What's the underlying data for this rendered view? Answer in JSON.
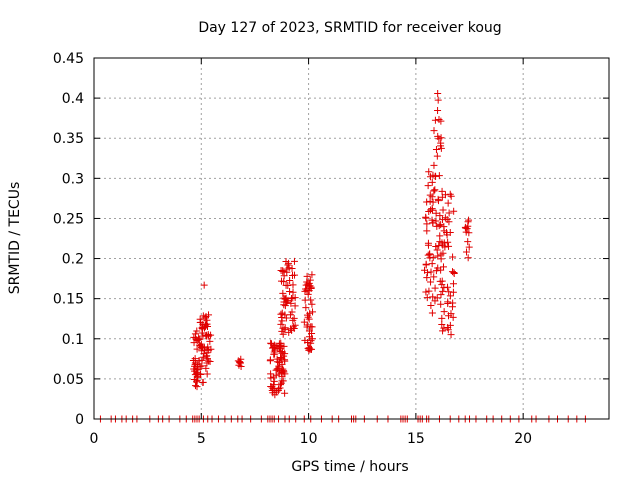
{
  "chart_data": {
    "type": "scatter",
    "title": "Day 127 of 2023, SRMTID for receiver koug",
    "xlabel": "GPS time / hours",
    "ylabel": "SRMTID / TECUs",
    "xlim": [
      0,
      24
    ],
    "ylim": [
      0,
      0.45
    ],
    "xticks": [
      0,
      5,
      10,
      15,
      20
    ],
    "yticks": [
      0,
      0.05,
      0.1,
      0.15,
      0.2,
      0.25,
      0.3,
      0.35,
      0.4,
      0.45
    ],
    "xtick_labels": [
      "0",
      "5",
      "10",
      "15",
      "20"
    ],
    "ytick_labels": [
      "0",
      "0.05",
      "0.1",
      "0.15",
      "0.2",
      "0.25",
      "0.3",
      "0.35",
      "0.4",
      "0.45"
    ],
    "grid": true,
    "marker": "+",
    "colors": {
      "marker": "#e00000",
      "grid": "#a0a0a0",
      "frame": "#000000"
    },
    "clusters": [
      {
        "x_range": [
          4.6,
          4.9
        ],
        "y_range": [
          0.04,
          0.11
        ],
        "count": 34
      },
      {
        "x_range": [
          4.9,
          5.45
        ],
        "y_range": [
          0.045,
          0.13
        ],
        "count": 60
      },
      {
        "x_range": [
          5.1,
          5.15
        ],
        "y_range": [
          0.16,
          0.17
        ],
        "count": 1
      },
      {
        "x_range": [
          6.7,
          6.9
        ],
        "y_range": [
          0.065,
          0.08
        ],
        "count": 8
      },
      {
        "x_range": [
          8.2,
          8.9
        ],
        "y_range": [
          0.03,
          0.095
        ],
        "count": 70
      },
      {
        "x_range": [
          8.7,
          9.4
        ],
        "y_range": [
          0.105,
          0.2
        ],
        "count": 60
      },
      {
        "x_range": [
          9.8,
          10.2
        ],
        "y_range": [
          0.085,
          0.18
        ],
        "count": 45
      },
      {
        "x_range": [
          15.4,
          15.8
        ],
        "y_range": [
          0.13,
          0.31
        ],
        "count": 40
      },
      {
        "x_range": [
          15.8,
          16.2
        ],
        "y_range": [
          0.14,
          0.415
        ],
        "count": 50
      },
      {
        "x_range": [
          16.2,
          16.8
        ],
        "y_range": [
          0.105,
          0.3
        ],
        "count": 55
      },
      {
        "x_range": [
          17.3,
          17.5
        ],
        "y_range": [
          0.2,
          0.25
        ],
        "count": 12
      }
    ],
    "zero_x": [
      0.3,
      0.8,
      1.0,
      1.3,
      1.5,
      1.8,
      2.0,
      2.6,
      3.0,
      3.2,
      3.5,
      4.0,
      4.3,
      4.6,
      4.7,
      4.8,
      4.9,
      5.1,
      5.3,
      5.5,
      5.8,
      6.1,
      6.4,
      6.7,
      6.9,
      7.3,
      7.8,
      8.1,
      8.2,
      8.3,
      8.4,
      8.6,
      8.9,
      9.1,
      9.4,
      9.8,
      10.1,
      10.6,
      11.1,
      11.4,
      12.0,
      12.1,
      12.2,
      12.6,
      13.2,
      13.7,
      14.3,
      14.4,
      14.5,
      14.6,
      15.1,
      15.2,
      15.3,
      15.5,
      15.6,
      16.1,
      16.6,
      17.0,
      17.3,
      17.5,
      17.8,
      18.3,
      18.6,
      19.0,
      19.4,
      19.8,
      20.4,
      20.6,
      21.2,
      21.6,
      22.1,
      22.5,
      22.9
    ]
  }
}
